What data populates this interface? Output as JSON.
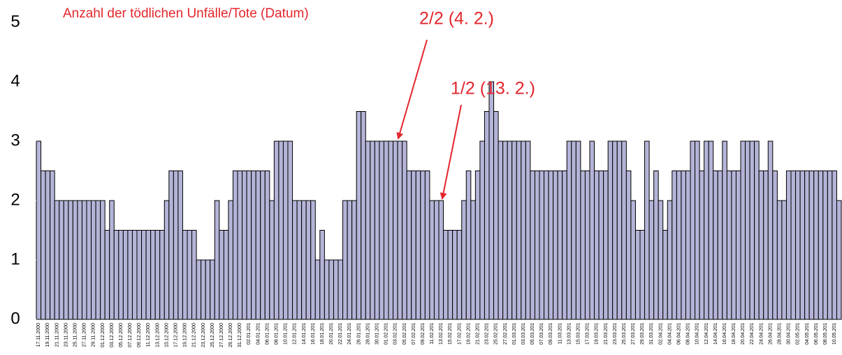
{
  "chart_data": {
    "type": "bar",
    "title": "Anzahl der tödlichen Unfälle/Tote (Datum)",
    "annotations": [
      "2/2 (4. 2.)",
      "1/2 (13. 2.)"
    ],
    "color": "#b4b4d8",
    "ylim": [
      0,
      5
    ],
    "yticks": [
      0,
      1,
      2,
      3,
      4,
      5
    ],
    "grid": false,
    "categories": [
      "17.11.2000",
      null,
      "19.11.2000",
      null,
      "21.11.2000",
      null,
      "23.11.2000",
      null,
      "25.11.2000",
      null,
      "27.11.2000",
      null,
      "29.11.2000",
      null,
      "01.12.2000",
      null,
      "03.12.2000",
      null,
      "05.12.2000",
      null,
      "07.12.2000",
      null,
      "09.12.2000",
      null,
      "11.12.2000",
      null,
      "13.12.2000",
      null,
      "15.12.2000",
      null,
      "17.12.2000",
      null,
      "19.12.2000",
      null,
      "21.12.2000",
      null,
      "23.12.2000",
      null,
      "25.12.2000",
      null,
      "27.12.2000",
      null,
      "29.12.2000",
      null,
      "31.12.2000",
      null,
      "02.01.201",
      null,
      "04.01.201",
      null,
      "06.01.201",
      null,
      "08.01.201",
      null,
      "10.01.201",
      null,
      "12.01.201",
      null,
      "14.01.201",
      null,
      "16.01.201",
      null,
      "18.01.201",
      null,
      "20.01.201",
      null,
      "22.01.201",
      null,
      "24.01.201",
      null,
      "26.01.201",
      null,
      "28.01.201",
      null,
      "30.01.201",
      null,
      "01.02.201",
      null,
      "03.02.201",
      null,
      "05.02.201",
      null,
      "07.02.201",
      null,
      "09.02.201",
      null,
      "11.02.201",
      null,
      "13.02.201",
      null,
      "15.02.201",
      null,
      "17.02.201",
      null,
      "19.02.201",
      null,
      "21.02.201",
      null,
      "23.02.201",
      null,
      "25.02.201",
      null,
      "27.02.201",
      null,
      "01.03.201",
      null,
      "03.03.201",
      null,
      "05.03.201",
      null,
      "07.03.201",
      null,
      "09.03.201",
      null,
      "11.03.201",
      null,
      "13.03.201",
      null,
      "15.03.201",
      null,
      "17.03.201",
      null,
      "19.03.201",
      null,
      "21.03.201",
      null,
      "23.03.201",
      null,
      "25.03.201",
      null,
      "27.03.201",
      null,
      "29.03.201",
      null,
      "31.03.201",
      null,
      "02.04.201",
      null,
      "04.04.201",
      null,
      "06.04.201",
      null,
      "08.04.201",
      null,
      "10.04.201",
      null,
      "12.04.201",
      null,
      "14.04.201",
      null,
      "16.04.201",
      null,
      "18.04.201",
      null,
      "20.04.201",
      null,
      "22.04.201",
      null,
      "24.04.201",
      null,
      "26.04.201",
      null,
      "28.04.201",
      null,
      "30.04.201",
      null,
      "02.05.201",
      null,
      "04.05.201",
      null,
      "06.05.201",
      null,
      "08.05.201",
      null,
      "10.05.201",
      null
    ],
    "values": [
      3,
      2.5,
      2.5,
      2.5,
      2,
      2,
      2,
      2,
      2,
      2,
      2,
      2,
      2,
      2,
      2,
      1.5,
      2,
      1.5,
      1.5,
      1.5,
      1.5,
      1.5,
      1.5,
      1.5,
      1.5,
      1.5,
      1.5,
      1.5,
      2,
      2.5,
      2.5,
      2.5,
      1.5,
      1.5,
      1.5,
      1,
      1,
      1,
      1,
      2,
      1.5,
      1.5,
      2,
      2.5,
      2.5,
      2.5,
      2.5,
      2.5,
      2.5,
      2.5,
      2.5,
      2,
      3,
      3,
      3,
      3,
      2,
      2,
      2,
      2,
      2,
      1,
      1.5,
      1,
      1,
      1,
      1,
      2,
      2,
      2,
      3.5,
      3.5,
      3,
      3,
      3,
      3,
      3,
      3,
      3,
      3,
      3,
      2.5,
      2.5,
      2.5,
      2.5,
      2.5,
      2,
      2,
      2,
      1.5,
      1.5,
      1.5,
      1.5,
      2,
      2.5,
      2,
      2.5,
      3,
      3.5,
      4,
      3.5,
      3,
      3,
      3,
      3,
      3,
      3,
      3,
      2.5,
      2.5,
      2.5,
      2.5,
      2.5,
      2.5,
      2.5,
      2.5,
      3,
      3,
      3,
      2.5,
      2.5,
      3,
      2.5,
      2.5,
      2.5,
      3,
      3,
      3,
      3,
      2.5,
      2,
      1.5,
      1.5,
      3,
      2,
      2.5,
      2,
      1.5,
      2,
      2.5,
      2.5,
      2.5,
      2.5,
      3,
      3,
      2.5,
      3,
      3,
      2.5,
      2.5,
      3,
      2.5,
      2.5,
      2.5,
      3,
      3,
      3,
      3,
      2.5,
      2.5,
      3,
      2.5,
      2,
      2,
      2.5,
      2.5,
      2.5,
      2.5,
      2.5,
      2.5,
      2.5,
      2.5,
      2.5,
      2.5,
      2.5,
      2
    ]
  }
}
